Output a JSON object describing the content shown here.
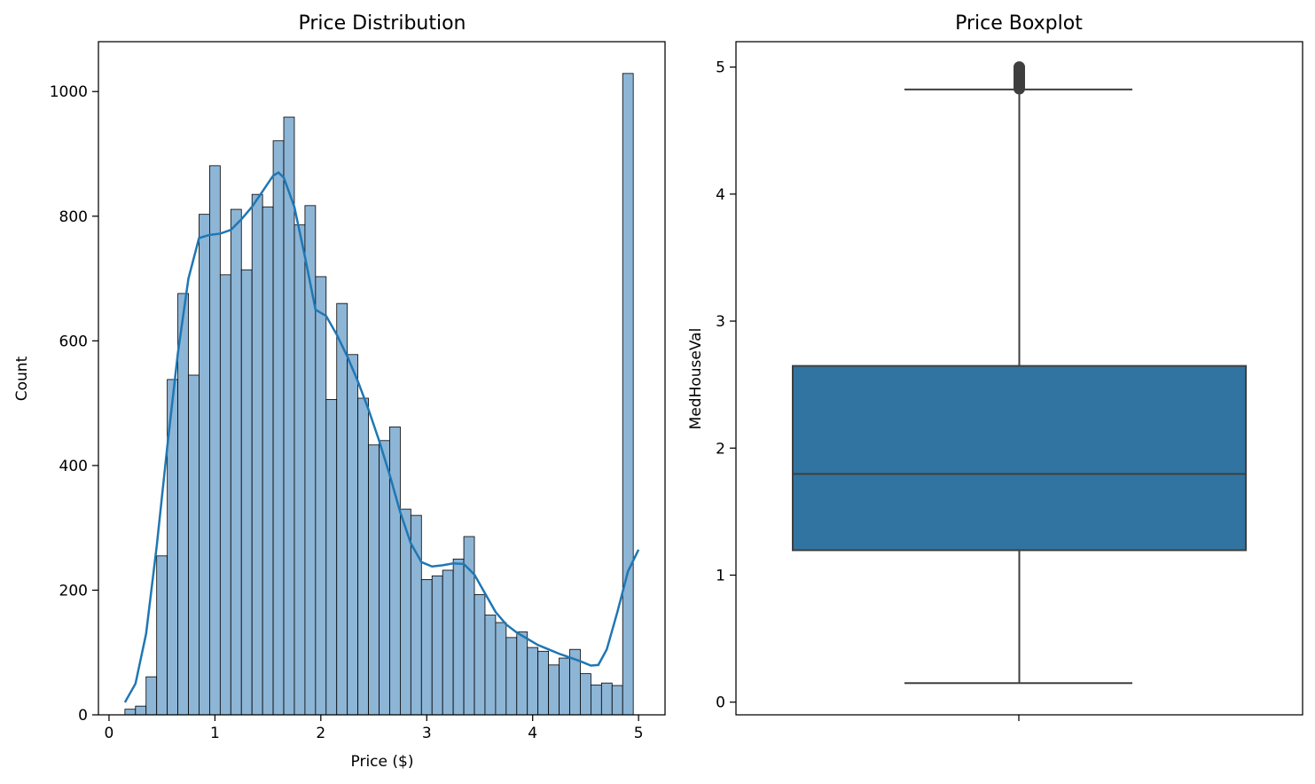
{
  "chart_data": [
    {
      "type": "bar",
      "subtype": "histogram-with-kde",
      "title": "Price Distribution",
      "xlabel": "Price ($)",
      "ylabel": "Count",
      "xlim": [
        -0.1,
        5.25
      ],
      "ylim": [
        0,
        1080
      ],
      "xticks": [
        0,
        1,
        2,
        3,
        4,
        5
      ],
      "yticks": [
        0,
        200,
        400,
        600,
        800,
        1000
      ],
      "bar_color": "#8db5d6",
      "kde_color": "#1f77b4",
      "bin_start": 0.15,
      "bin_width": 0.1,
      "counts": [
        9,
        14,
        61,
        255,
        538,
        676,
        545,
        803,
        881,
        706,
        811,
        714,
        835,
        815,
        921,
        959,
        786,
        817,
        703,
        506,
        660,
        578,
        508,
        433,
        440,
        462,
        330,
        320,
        217,
        223,
        232,
        250,
        286,
        193,
        160,
        148,
        124,
        133,
        108,
        102,
        80,
        91,
        105,
        66,
        48,
        51,
        47,
        1029
      ],
      "kde_x": [
        0.15,
        0.25,
        0.35,
        0.45,
        0.55,
        0.65,
        0.75,
        0.85,
        0.95,
        1.05,
        1.15,
        1.25,
        1.35,
        1.45,
        1.55,
        1.6,
        1.65,
        1.75,
        1.85,
        1.95,
        2.05,
        2.15,
        2.25,
        2.35,
        2.45,
        2.55,
        2.65,
        2.75,
        2.85,
        2.95,
        3.05,
        3.15,
        3.25,
        3.35,
        3.45,
        3.55,
        3.65,
        3.75,
        3.85,
        3.95,
        4.05,
        4.15,
        4.25,
        4.35,
        4.45,
        4.55,
        4.62,
        4.7,
        4.8,
        4.9,
        5.0
      ],
      "kde_y": [
        20,
        50,
        130,
        270,
        430,
        580,
        700,
        765,
        770,
        772,
        778,
        795,
        815,
        840,
        865,
        870,
        862,
        815,
        735,
        650,
        640,
        610,
        575,
        535,
        490,
        440,
        385,
        325,
        275,
        245,
        238,
        240,
        243,
        242,
        225,
        195,
        165,
        145,
        132,
        122,
        112,
        105,
        98,
        92,
        86,
        79,
        80,
        105,
        165,
        230,
        265
      ]
    },
    {
      "type": "box",
      "title": "Price Boxplot",
      "ylabel": "MedHouseVal",
      "ylim": [
        -0.1,
        5.2
      ],
      "yticks": [
        0,
        1,
        2,
        3,
        4,
        5
      ],
      "box_color": "#3274a1",
      "whisker_low": 0.15,
      "q1": 1.196,
      "median": 1.797,
      "q3": 2.647,
      "whisker_high": 4.824,
      "outliers_range": [
        4.83,
        5.0
      ]
    }
  ]
}
